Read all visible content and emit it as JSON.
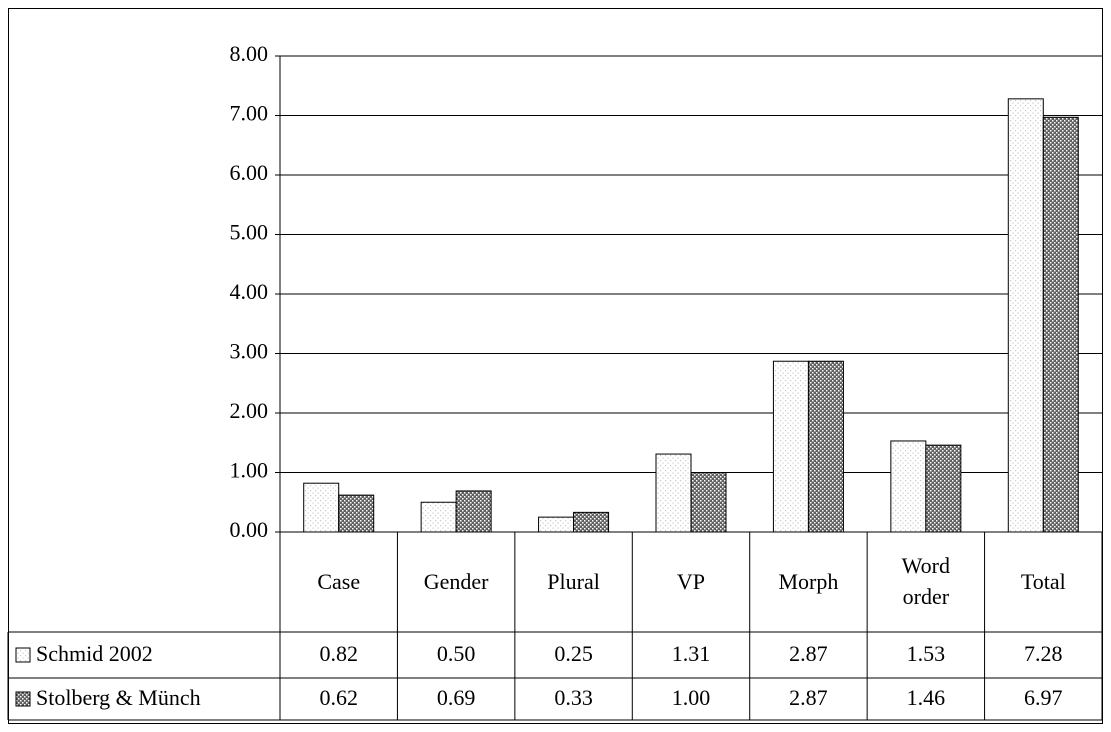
{
  "chart_data": {
    "type": "bar",
    "categories": [
      "Case",
      "Gender",
      "Plural",
      "VP",
      "Morph",
      "Word order",
      "Total"
    ],
    "series": [
      {
        "name": "Schmid 2002",
        "color": "#c8c8c8",
        "values": [
          0.82,
          0.5,
          0.25,
          1.31,
          2.87,
          1.53,
          7.28
        ],
        "value_labels": [
          "0.82",
          "0.50",
          "0.25",
          "1.31",
          "2.87",
          "1.53",
          "7.28"
        ]
      },
      {
        "name": "Stolberg & Münch",
        "color": "#606060",
        "values": [
          0.62,
          0.69,
          0.33,
          1.0,
          2.87,
          1.46,
          6.97
        ],
        "value_labels": [
          "0.62",
          "0.69",
          "0.33",
          "1.00",
          "2.87",
          "1.46",
          "6.97"
        ]
      }
    ],
    "ylim": [
      0,
      8
    ],
    "yticks": [
      {
        "value": 0,
        "label": "0.00"
      },
      {
        "value": 1,
        "label": "1.00"
      },
      {
        "value": 2,
        "label": "2.00"
      },
      {
        "value": 3,
        "label": "3.00"
      },
      {
        "value": 4,
        "label": "4.00"
      },
      {
        "value": 5,
        "label": "5.00"
      },
      {
        "value": 6,
        "label": "6.00"
      },
      {
        "value": 7,
        "label": "7.00"
      },
      {
        "value": 8,
        "label": "8.00"
      }
    ],
    "grid": true
  }
}
